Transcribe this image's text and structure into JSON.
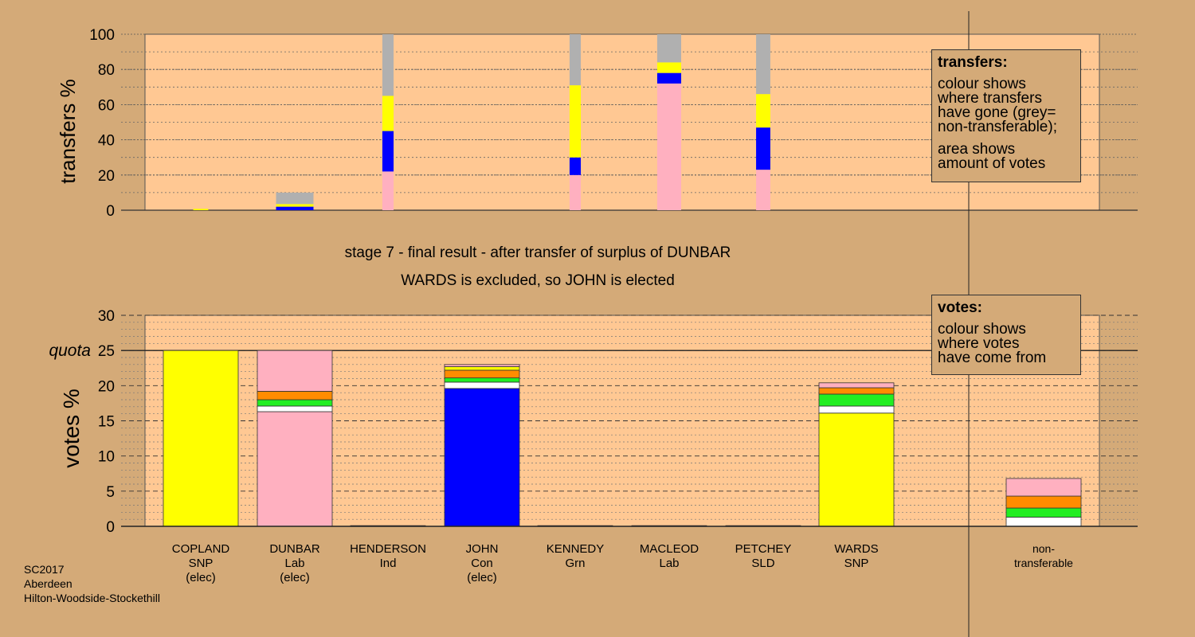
{
  "colors": {
    "background": "#d4aa78",
    "panel": "#ffc893",
    "yellow": "#ffff00",
    "pink": "#ffb0c0",
    "blue": "#0000ff",
    "green": "#22ee22",
    "orange": "#ff8c00",
    "white": "#ffffff",
    "grey": "#b0b0b0"
  },
  "header": {
    "stage_line": "stage 7 - final result - after transfer of surplus of DUNBAR",
    "result_line": "WARDS is excluded, so JOHN is elected"
  },
  "transfers_legend": {
    "title": "transfers:",
    "line1": "colour shows",
    "line2": "where transfers",
    "line3": "have gone (grey=",
    "line4": "non-transferable);",
    "line5": "area shows",
    "line6": "amount of votes"
  },
  "votes_legend": {
    "title": "votes:",
    "line1": "colour shows",
    "line2": "where votes",
    "line3": "have come from"
  },
  "footer": {
    "line1": "SC2017",
    "line2": "Aberdeen",
    "line3": "Hilton-Woodside-Stockethill"
  },
  "chart_data": [
    {
      "type": "bar",
      "stacked": true,
      "ylabel": "transfers %",
      "ylim": [
        0,
        100
      ],
      "yticks": [
        0,
        20,
        40,
        60,
        80,
        100
      ],
      "bars": [
        {
          "candidate": "COPLAND",
          "width_rel": 0.2,
          "segments": [
            {
              "color": "yellow",
              "value": 0.8
            }
          ]
        },
        {
          "candidate": "DUNBAR",
          "width_rel": 0.5,
          "segments": [
            {
              "color": "blue",
              "value": 2
            },
            {
              "color": "yellow",
              "value": 1.5
            },
            {
              "color": "grey",
              "value": 6.5
            }
          ]
        },
        {
          "candidate": "HENDERSON",
          "width_rel": 0.15,
          "segments": [
            {
              "color": "pink",
              "value": 22
            },
            {
              "color": "blue",
              "value": 23
            },
            {
              "color": "yellow",
              "value": 20
            },
            {
              "color": "grey",
              "value": 35
            }
          ]
        },
        {
          "candidate": "KENNEDY",
          "width_rel": 0.15,
          "segments": [
            {
              "color": "pink",
              "value": 20
            },
            {
              "color": "blue",
              "value": 10
            },
            {
              "color": "yellow",
              "value": 41
            },
            {
              "color": "grey",
              "value": 29
            }
          ]
        },
        {
          "candidate": "MACLEOD",
          "width_rel": 0.32,
          "segments": [
            {
              "color": "pink",
              "value": 72
            },
            {
              "color": "blue",
              "value": 6
            },
            {
              "color": "yellow",
              "value": 6
            },
            {
              "color": "grey",
              "value": 16
            }
          ]
        },
        {
          "candidate": "PETCHEY",
          "width_rel": 0.19,
          "segments": [
            {
              "color": "pink",
              "value": 23
            },
            {
              "color": "blue",
              "value": 24
            },
            {
              "color": "yellow",
              "value": 19
            },
            {
              "color": "grey",
              "value": 34
            }
          ]
        }
      ]
    },
    {
      "type": "bar",
      "stacked": true,
      "ylabel": "votes %",
      "ylim": [
        0,
        30
      ],
      "yticks": [
        0,
        5,
        10,
        15,
        20,
        25,
        30
      ],
      "quota": {
        "label": "quota",
        "value": 25
      },
      "categories": [
        {
          "name": "COPLAND",
          "party": "SNP",
          "note": "(elec)"
        },
        {
          "name": "DUNBAR",
          "party": "Lab",
          "note": "(elec)"
        },
        {
          "name": "HENDERSON",
          "party": "Ind",
          "note": ""
        },
        {
          "name": "JOHN",
          "party": "Con",
          "note": "(elec)"
        },
        {
          "name": "KENNEDY",
          "party": "Grn",
          "note": ""
        },
        {
          "name": "MACLEOD",
          "party": "Lab",
          "note": ""
        },
        {
          "name": "PETCHEY",
          "party": "SLD",
          "note": ""
        },
        {
          "name": "WARDS",
          "party": "SNP",
          "note": ""
        },
        {
          "name": "non-",
          "party": "transferable",
          "note": ""
        }
      ],
      "stacks": [
        [
          {
            "color": "yellow",
            "value": 25
          }
        ],
        [
          {
            "color": "pink",
            "value": 16.3
          },
          {
            "color": "white",
            "value": 0.8
          },
          {
            "color": "green",
            "value": 0.9
          },
          {
            "color": "orange",
            "value": 1.2
          },
          {
            "color": "pink",
            "value": 5.8
          }
        ],
        [
          {
            "color": "pink",
            "value": 0.1
          }
        ],
        [
          {
            "color": "blue",
            "value": 19.6
          },
          {
            "color": "white",
            "value": 0.9
          },
          {
            "color": "green",
            "value": 0.6
          },
          {
            "color": "orange",
            "value": 1.1
          },
          {
            "color": "yellow",
            "value": 0.5
          },
          {
            "color": "pink",
            "value": 0.3
          }
        ],
        [
          {
            "color": "pink",
            "value": 0.1
          }
        ],
        [
          {
            "color": "pink",
            "value": 0.1
          }
        ],
        [
          {
            "color": "pink",
            "value": 0.1
          }
        ],
        [
          {
            "color": "yellow",
            "value": 16.1
          },
          {
            "color": "white",
            "value": 1
          },
          {
            "color": "green",
            "value": 1.7
          },
          {
            "color": "orange",
            "value": 0.9
          },
          {
            "color": "pink",
            "value": 0.7
          }
        ],
        [
          {
            "color": "white",
            "value": 1.3
          },
          {
            "color": "green",
            "value": 1.3
          },
          {
            "color": "orange",
            "value": 1.7
          },
          {
            "color": "pink",
            "value": 2.5
          }
        ]
      ]
    }
  ]
}
